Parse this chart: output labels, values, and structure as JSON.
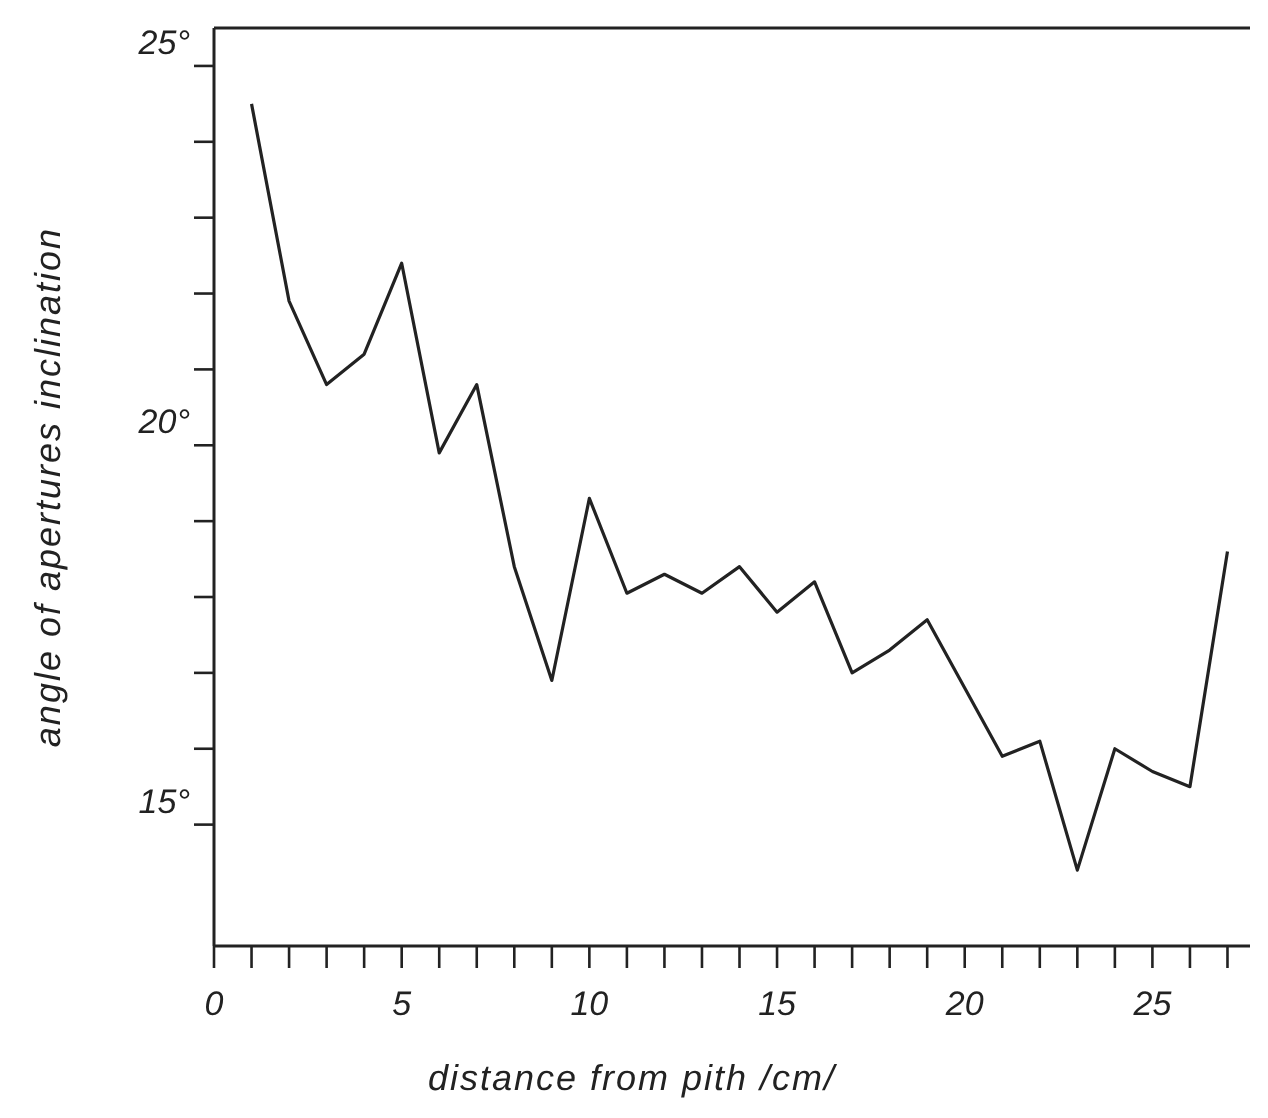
{
  "chart_data": {
    "type": "line",
    "xlabel": "distance from pith  /cm/",
    "ylabel": "angle of apertures inclination",
    "x": [
      1,
      2,
      3,
      4,
      5,
      6,
      7,
      8,
      9,
      10,
      11,
      12,
      13,
      14,
      15,
      16,
      17,
      18,
      19,
      20,
      21,
      22,
      23,
      24,
      25,
      26,
      27
    ],
    "series": [
      {
        "color": "#222222",
        "values": [
          24.5,
          21.9,
          20.8,
          21.2,
          22.4,
          19.9,
          20.8,
          18.4,
          16.9,
          19.3,
          18.05,
          18.3,
          18.05,
          18.4,
          17.8,
          18.2,
          17.0,
          17.3,
          17.7,
          16.8,
          15.9,
          16.1,
          14.4,
          16.0,
          15.7,
          15.5,
          18.6
        ]
      }
    ],
    "xlim": [
      0,
      27.6
    ],
    "ylim": [
      13.4,
      25.5
    ],
    "xticks": [
      0,
      {
        "value": 1,
        "label": null
      },
      {
        "value": 2,
        "label": null
      },
      {
        "value": 3,
        "label": null
      },
      {
        "value": 4,
        "label": null
      },
      5,
      {
        "value": 6,
        "label": null
      },
      {
        "value": 7,
        "label": null
      },
      {
        "value": 8,
        "label": null
      },
      {
        "value": 9,
        "label": null
      },
      10,
      {
        "value": 11,
        "label": null
      },
      {
        "value": 12,
        "label": null
      },
      {
        "value": 13,
        "label": null
      },
      {
        "value": 14,
        "label": null
      },
      15,
      {
        "value": 16,
        "label": null
      },
      {
        "value": 17,
        "label": null
      },
      {
        "value": 18,
        "label": null
      },
      {
        "value": 19,
        "label": null
      },
      20,
      {
        "value": 21,
        "label": null
      },
      {
        "value": 22,
        "label": null
      },
      {
        "value": 23,
        "label": null
      },
      {
        "value": 24,
        "label": null
      },
      25,
      {
        "value": 26,
        "label": null
      },
      {
        "value": 27,
        "label": null
      }
    ],
    "yticks": [
      {
        "value": 15,
        "label": "15°"
      },
      {
        "value": 16,
        "label": null
      },
      {
        "value": 17,
        "label": null
      },
      {
        "value": 18,
        "label": null
      },
      {
        "value": 19,
        "label": null
      },
      {
        "value": 20,
        "label": "20°"
      },
      {
        "value": 21,
        "label": null
      },
      {
        "value": 22,
        "label": null
      },
      {
        "value": 23,
        "label": null
      },
      {
        "value": 24,
        "label": null
      },
      {
        "value": 25,
        "label": "25°"
      }
    ],
    "grid": false,
    "marker": "none",
    "line_style": "solid"
  }
}
